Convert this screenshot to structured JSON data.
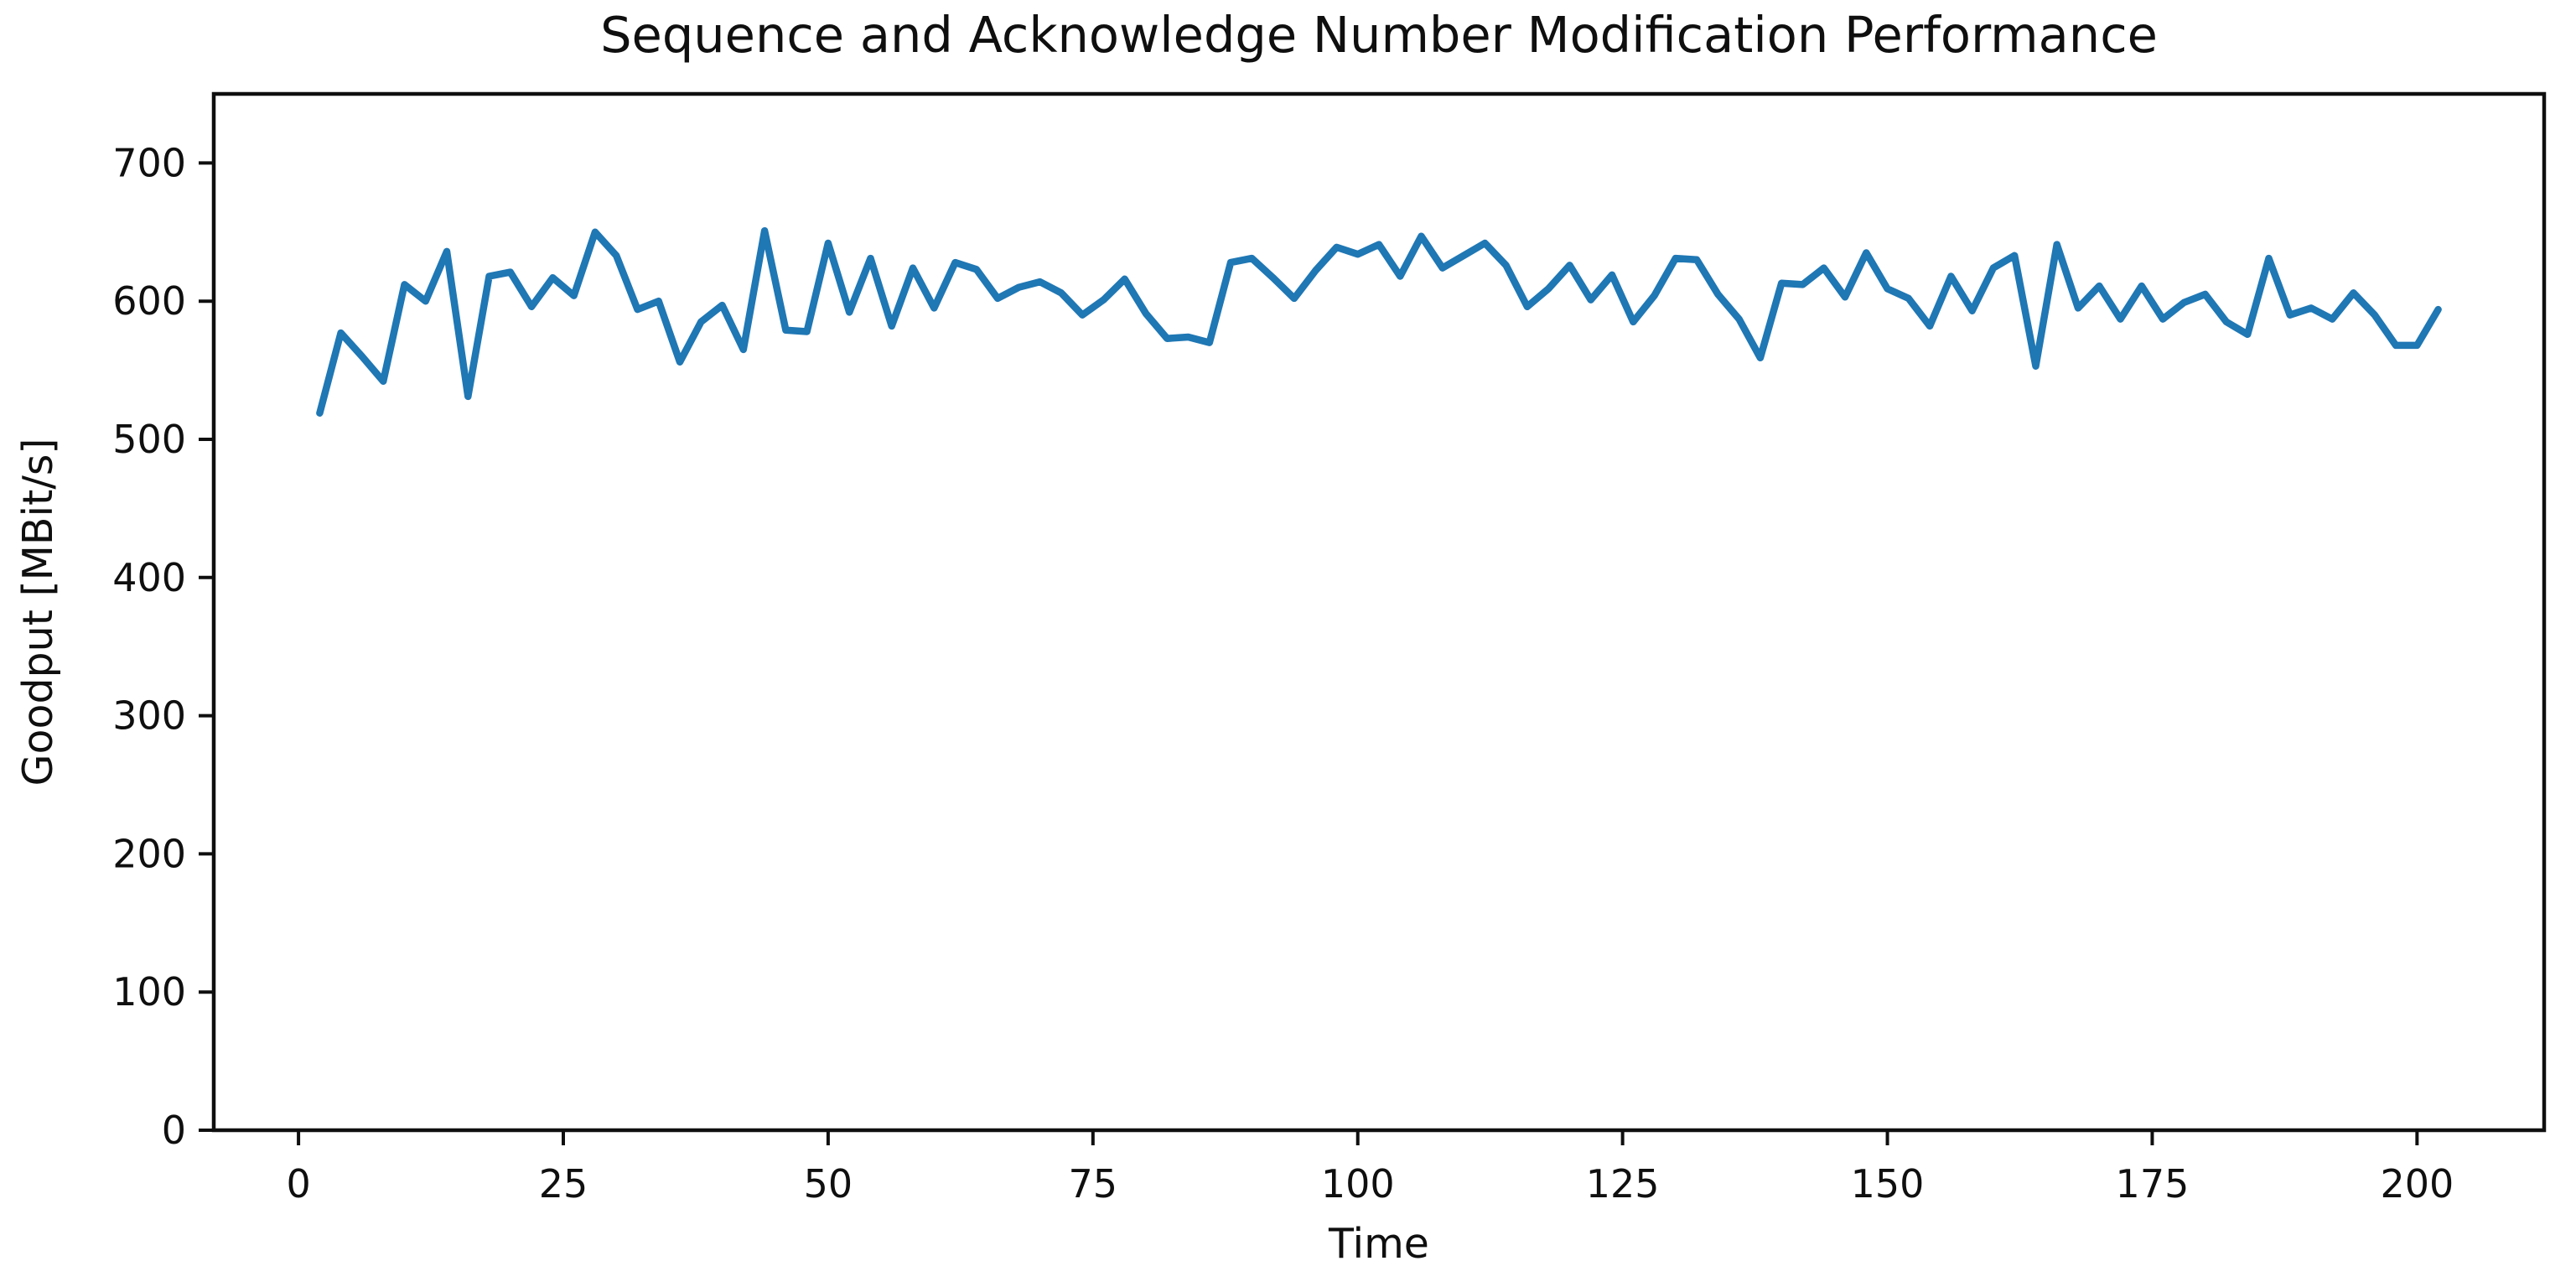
{
  "figure": {
    "background": "#ffffff",
    "text_color": "#0f0f0f"
  },
  "chart_data": {
    "type": "line",
    "title": "Sequence and Acknowledge Number Modification Performance",
    "xlabel": "Time",
    "ylabel": "Goodput [MBit/s]",
    "xlim": [
      -8,
      212
    ],
    "ylim": [
      0,
      750
    ],
    "xticks": [
      0,
      25,
      50,
      75,
      100,
      125,
      150,
      175,
      200
    ],
    "yticks": [
      0,
      100,
      200,
      300,
      400,
      500,
      600,
      700
    ],
    "grid": false,
    "legend_position": "none",
    "series": [
      {
        "name": "Goodput",
        "color": "#1f77b4",
        "x": [
          2,
          4,
          6,
          8,
          10,
          12,
          14,
          16,
          18,
          20,
          22,
          24,
          26,
          28,
          30,
          32,
          34,
          36,
          38,
          40,
          42,
          44,
          46,
          48,
          50,
          52,
          54,
          56,
          58,
          60,
          62,
          64,
          66,
          68,
          70,
          72,
          74,
          76,
          78,
          80,
          82,
          84,
          86,
          88,
          90,
          92,
          94,
          96,
          98,
          100,
          102,
          104,
          106,
          108,
          110,
          112,
          114,
          116,
          118,
          120,
          122,
          124,
          126,
          128,
          130,
          132,
          134,
          136,
          138,
          140,
          142,
          144,
          146,
          148,
          150,
          152,
          154,
          156,
          158,
          160,
          162,
          164,
          166,
          168,
          170,
          172,
          174,
          176,
          178,
          180,
          182,
          184,
          186,
          188,
          190,
          192,
          194,
          196,
          198,
          200,
          202
        ],
        "y": [
          519,
          577,
          560,
          542,
          612,
          600,
          636,
          531,
          618,
          621,
          596,
          617,
          604,
          650,
          633,
          594,
          600,
          556,
          585,
          597,
          565,
          651,
          579,
          578,
          642,
          592,
          631,
          582,
          624,
          595,
          628,
          623,
          602,
          610,
          614,
          606,
          590,
          601,
          616,
          591,
          573,
          574,
          570,
          628,
          631,
          617,
          602,
          622,
          639,
          634,
          641,
          618,
          647,
          624,
          633,
          642,
          626,
          596,
          609,
          626,
          601,
          619,
          585,
          604,
          631,
          630,
          605,
          587,
          559,
          613,
          612,
          624,
          603,
          635,
          609,
          602,
          582,
          618,
          593,
          624,
          633,
          553,
          641,
          595,
          611,
          587,
          611,
          587,
          599,
          605,
          585,
          576,
          631,
          590,
          595,
          587,
          606,
          590,
          568,
          568,
          594
        ]
      }
    ]
  }
}
